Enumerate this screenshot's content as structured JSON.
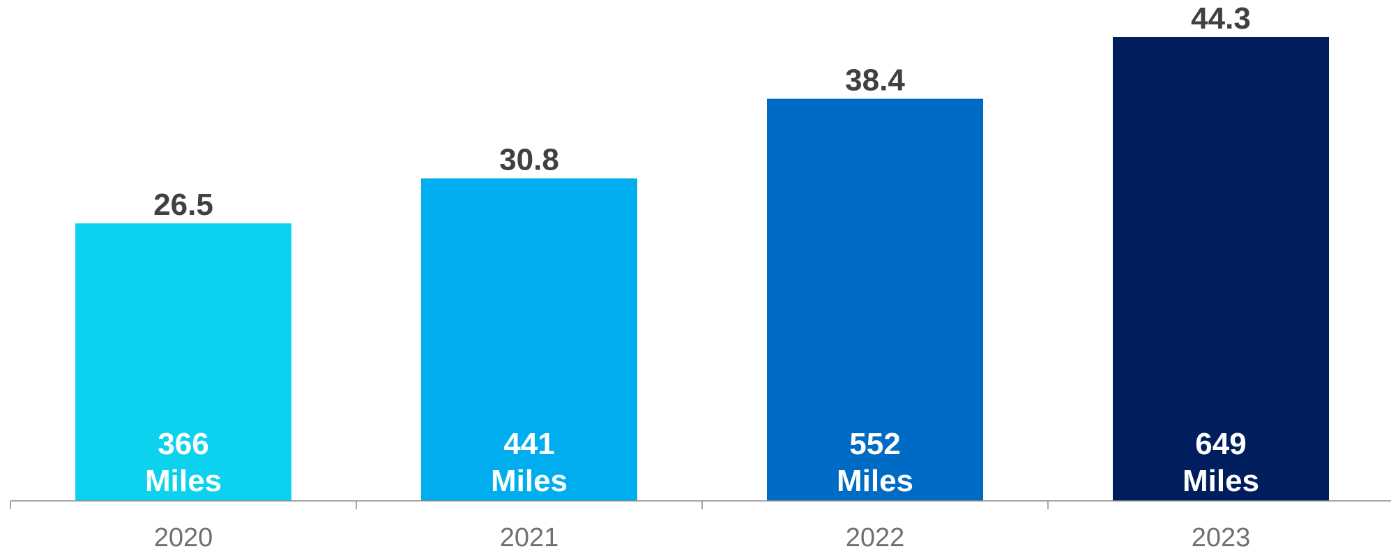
{
  "chart_data": {
    "type": "bar",
    "categories": [
      "2020",
      "2021",
      "2022",
      "2023"
    ],
    "values": [
      26.5,
      30.8,
      38.4,
      44.3
    ],
    "value_labels": [
      "26.5",
      "30.8",
      "38.4",
      "44.3"
    ],
    "inner_labels": [
      {
        "number": "366",
        "unit": "Miles"
      },
      {
        "number": "441",
        "unit": "Miles"
      },
      {
        "number": "552",
        "unit": "Miles"
      },
      {
        "number": "649",
        "unit": "Miles"
      }
    ],
    "colors": [
      "#0CD2F0",
      "#00AEEF",
      "#006BC4",
      "#001E5E"
    ],
    "title": "",
    "xlabel": "",
    "ylabel": "",
    "ylim": [
      0,
      46.5
    ],
    "grid": false,
    "legend": "none"
  }
}
